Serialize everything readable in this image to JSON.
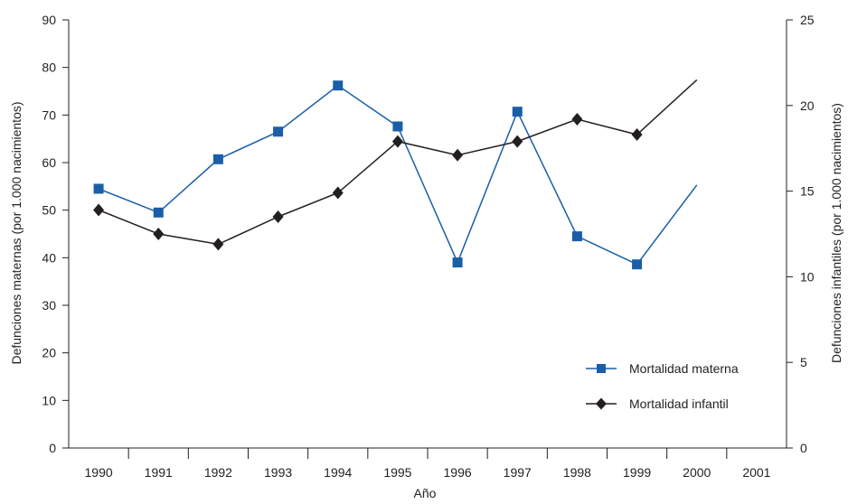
{
  "chart_data": {
    "type": "line",
    "title": "",
    "xlabel": "Año",
    "ylabel_left": "Defunciones maternas (por 1.000 nacimientos)",
    "ylabel_right": "Defunciones infantiles (por 1.000 nacimientos)",
    "categories": [
      "1990",
      "1991",
      "1992",
      "1993",
      "1994",
      "1995",
      "1996",
      "1997",
      "1998",
      "1999",
      "2000",
      "2001"
    ],
    "ylim_left": [
      0,
      90
    ],
    "yticks_left": [
      0,
      10,
      20,
      30,
      40,
      50,
      60,
      70,
      80,
      90
    ],
    "ylim_right": [
      0,
      25
    ],
    "yticks_right": [
      0,
      5,
      10,
      15,
      20,
      25
    ],
    "grid": false,
    "legend_position": "bottom-right",
    "series": [
      {
        "name": "Mortalidad materna",
        "axis": "left",
        "color": "#1a5ea8",
        "marker": "square",
        "values": [
          54.5,
          49.5,
          60.7,
          66.5,
          76.2,
          67.6,
          39.0,
          70.7,
          44.5,
          38.6,
          55.3,
          null
        ]
      },
      {
        "name": "Mortalidad infantil",
        "axis": "right",
        "color": "#231f20",
        "marker": "diamond",
        "values": [
          13.9,
          12.5,
          11.9,
          13.5,
          14.9,
          17.9,
          17.1,
          17.9,
          19.2,
          18.3,
          21.5,
          null
        ]
      }
    ]
  }
}
